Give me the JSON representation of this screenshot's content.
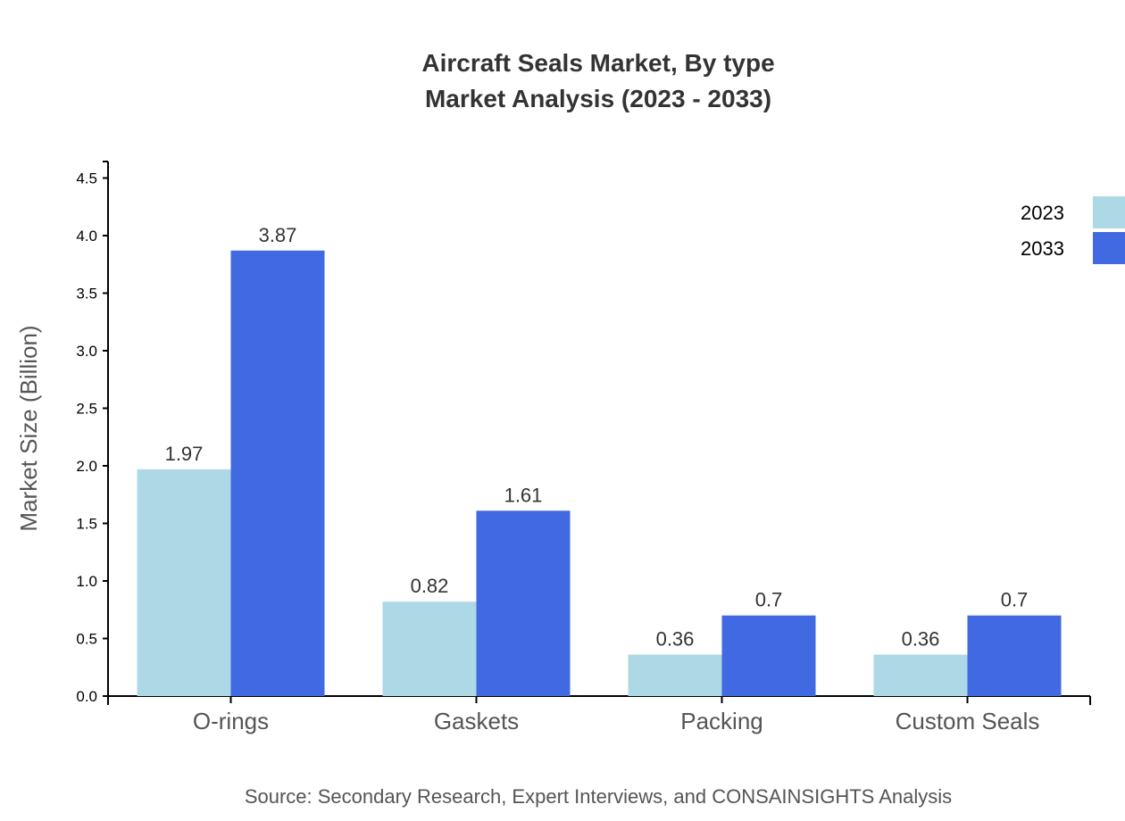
{
  "chart_data": {
    "type": "bar",
    "title": "Aircraft Seals Market, By type",
    "subtitle": "Market Analysis (2023 - 2033)",
    "xlabel": "",
    "ylabel": "Market Size (Billion)",
    "ylim": [
      0,
      4.6
    ],
    "yticks": [
      "0.0",
      "0.5",
      "1.0",
      "1.5",
      "2.0",
      "2.5",
      "3.0",
      "3.5",
      "4.0",
      "4.5"
    ],
    "categories": [
      "O-rings",
      "Gaskets",
      "Packing",
      "Custom Seals"
    ],
    "series": [
      {
        "name": "2023",
        "color": "#add8e6",
        "values": [
          1.97,
          0.82,
          0.36,
          0.36
        ]
      },
      {
        "name": "2033",
        "color": "#4169e1",
        "values": [
          3.87,
          1.61,
          0.7,
          0.7
        ]
      }
    ],
    "legend": "top-right",
    "grid": false,
    "source": "Source: Secondary Research, Expert Interviews, and CONSAINSIGHTS Analysis"
  }
}
